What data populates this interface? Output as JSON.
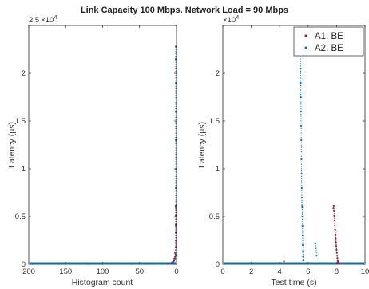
{
  "figure_title": "Link Capacity 100 Mbps. Network Load = 90 Mbps",
  "colors": {
    "a1": "#a2142f",
    "a2": "#0072bd"
  },
  "chart_data": [
    {
      "type": "scatter",
      "panel": "left",
      "xlabel": "Histogram count",
      "ylabel": "Latency  (μs)",
      "xlim": [
        200,
        0
      ],
      "x_reversed": true,
      "ylim": [
        0,
        25000
      ],
      "y_exponent_label": "×10^4",
      "xticks": [
        "200",
        "150",
        "100",
        "50",
        "0"
      ],
      "yticks": [
        "0",
        "0.5",
        "1",
        "1.5",
        "2",
        "2.5"
      ],
      "series": [
        {
          "color": "#0072bd",
          "x": [
            195,
            160,
            150,
            120,
            100,
            80,
            60,
            50,
            40,
            30,
            20,
            15,
            10,
            8,
            6,
            5,
            4,
            3,
            2,
            1,
            1,
            1,
            1,
            1,
            1,
            1,
            1,
            1,
            1,
            1
          ],
          "y": [
            40,
            45,
            50,
            40,
            55,
            60,
            50,
            65,
            70,
            80,
            90,
            100,
            120,
            130,
            160,
            200,
            260,
            400,
            600,
            1000,
            2500,
            4000,
            6000,
            8000,
            10000,
            13000,
            16000,
            19000,
            21500,
            22800
          ]
        },
        {
          "color": "#a2142f",
          "x": [
            12,
            6,
            4,
            3,
            2,
            2,
            1,
            1,
            1,
            1,
            1,
            1
          ],
          "y": [
            80,
            200,
            400,
            600,
            800,
            1200,
            1800,
            2500,
            3300,
            4200,
            5100,
            6100
          ]
        }
      ]
    },
    {
      "type": "scatter",
      "panel": "right",
      "xlabel": "Test time (s)",
      "ylabel": "Latency  (μs)",
      "xlim": [
        0,
        10
      ],
      "ylim": [
        0,
        25000
      ],
      "y_exponent_label": "×10^4",
      "xticks": [
        "0",
        "2",
        "4",
        "6",
        "8",
        "10"
      ],
      "yticks": [
        "0",
        "0.5",
        "1",
        "1.5",
        "2",
        "2.5"
      ],
      "legend": {
        "position": "top-right",
        "entries": [
          "A1. BE",
          "A2. BE"
        ]
      },
      "series": [
        {
          "name": "A1. BE",
          "color": "#a2142f",
          "x": [
            7.8,
            7.82,
            7.84,
            7.86,
            7.88,
            7.9,
            7.92,
            7.94,
            7.96,
            7.98,
            8.0,
            8.02,
            8.04,
            8.06,
            8.08,
            8.1,
            8.12,
            7.78,
            8.15,
            4.3
          ],
          "y": [
            6100,
            5600,
            5100,
            4600,
            4100,
            3600,
            3100,
            2700,
            2300,
            1900,
            1500,
            1200,
            900,
            650,
            400,
            250,
            120,
            5900,
            80,
            300
          ]
        },
        {
          "name": "A2. BE",
          "color": "#0072bd",
          "x": [
            5.45,
            5.46,
            5.47,
            5.48,
            5.49,
            5.5,
            5.51,
            5.52,
            5.53,
            5.54,
            5.55,
            5.56,
            5.57,
            5.58,
            5.59,
            5.6,
            5.61,
            5.62,
            5.63,
            5.64,
            5.65,
            6.5,
            6.55,
            6.6,
            4.0,
            3.0,
            7.0
          ],
          "y": [
            22800,
            22000,
            20500,
            19000,
            17500,
            16000,
            14500,
            13000,
            11000,
            9500,
            8000,
            7000,
            6200,
            6000,
            5000,
            4000,
            3000,
            2000,
            1300,
            800,
            400,
            2200,
            1700,
            900,
            150,
            120,
            140
          ]
        }
      ]
    }
  ]
}
